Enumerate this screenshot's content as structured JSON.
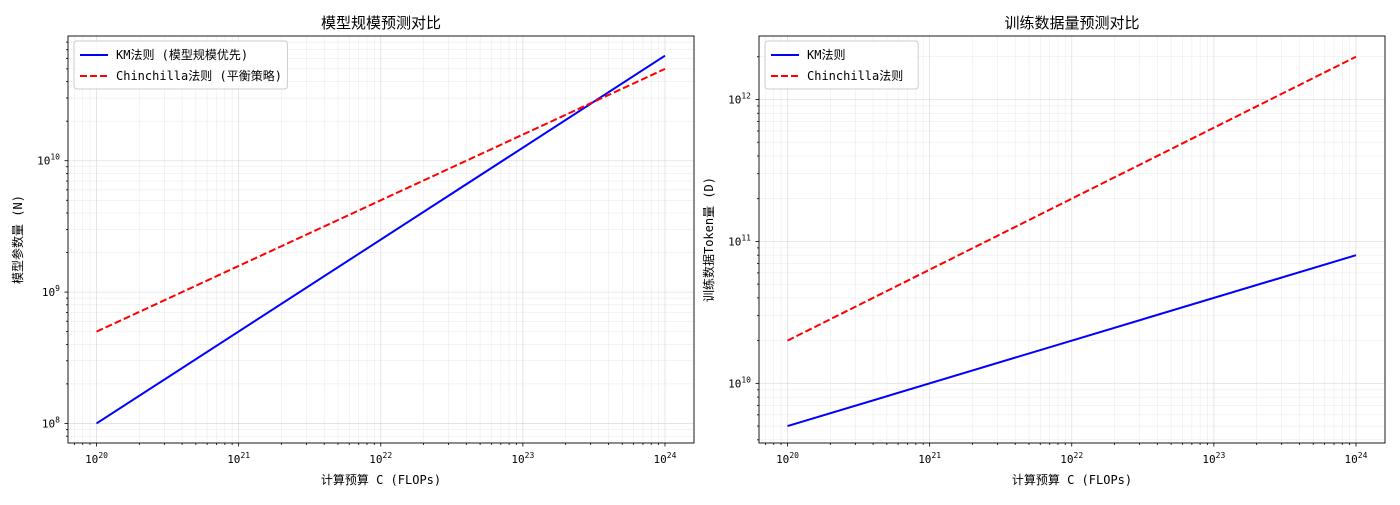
{
  "chart_data": [
    {
      "type": "line",
      "title": "模型规模预测对比",
      "xlabel": "计算预算 C (FLOPs)",
      "ylabel": "模型参数量 (N)",
      "xscale": "log",
      "yscale": "log",
      "xlim": [
        6.3e+19,
        1.6e+24
      ],
      "ylim": [
        71000000.0,
        89000000000.0
      ],
      "x_ticks": [
        {
          "base": "10",
          "exp": "20",
          "value": 1e+20
        },
        {
          "base": "10",
          "exp": "21",
          "value": 1e+21
        },
        {
          "base": "10",
          "exp": "22",
          "value": 1e+22
        },
        {
          "base": "10",
          "exp": "23",
          "value": 1e+23
        },
        {
          "base": "10",
          "exp": "24",
          "value": 1e+24
        }
      ],
      "y_ticks": [
        {
          "base": "10",
          "exp": "8",
          "value": 100000000.0
        },
        {
          "base": "10",
          "exp": "9",
          "value": 1000000000.0
        },
        {
          "base": "10",
          "exp": "10",
          "value": 10000000000.0
        }
      ],
      "grid": true,
      "legend_position": "top-left",
      "series": [
        {
          "name": "KM法则 (模型规模优先)",
          "color": "#0000ff",
          "style": "solid",
          "x": [
            1e+20,
            1e+24
          ],
          "y": [
            100000000.0,
            63000000000.0
          ]
        },
        {
          "name": "Chinchilla法则 (平衡策略)",
          "color": "#ff0000",
          "style": "dashed",
          "x": [
            1e+20,
            1e+24
          ],
          "y": [
            500000000.0,
            50000000000.0
          ]
        }
      ]
    },
    {
      "type": "line",
      "title": "训练数据量预测对比",
      "xlabel": "计算预算 C (FLOPs)",
      "ylabel": "训练数据Token量 (D)",
      "xscale": "log",
      "yscale": "log",
      "xlim": [
        6.3e+19,
        1.6e+24
      ],
      "ylim": [
        3800000000.0,
        2800000000000.0
      ],
      "x_ticks": [
        {
          "base": "10",
          "exp": "20",
          "value": 1e+20
        },
        {
          "base": "10",
          "exp": "21",
          "value": 1e+21
        },
        {
          "base": "10",
          "exp": "22",
          "value": 1e+22
        },
        {
          "base": "10",
          "exp": "23",
          "value": 1e+23
        },
        {
          "base": "10",
          "exp": "24",
          "value": 1e+24
        }
      ],
      "y_ticks": [
        {
          "base": "10",
          "exp": "10",
          "value": 10000000000.0
        },
        {
          "base": "10",
          "exp": "11",
          "value": 100000000000.0
        },
        {
          "base": "10",
          "exp": "12",
          "value": 1000000000000.0
        }
      ],
      "grid": true,
      "legend_position": "top-left",
      "series": [
        {
          "name": "KM法则",
          "color": "#0000ff",
          "style": "solid",
          "x": [
            1e+20,
            1e+24
          ],
          "y": [
            5000000000.0,
            80000000000.0
          ]
        },
        {
          "name": "Chinchilla法则",
          "color": "#ff0000",
          "style": "dashed",
          "x": [
            1e+20,
            1e+24
          ],
          "y": [
            20000000000.0,
            2000000000000.0
          ]
        }
      ]
    }
  ]
}
